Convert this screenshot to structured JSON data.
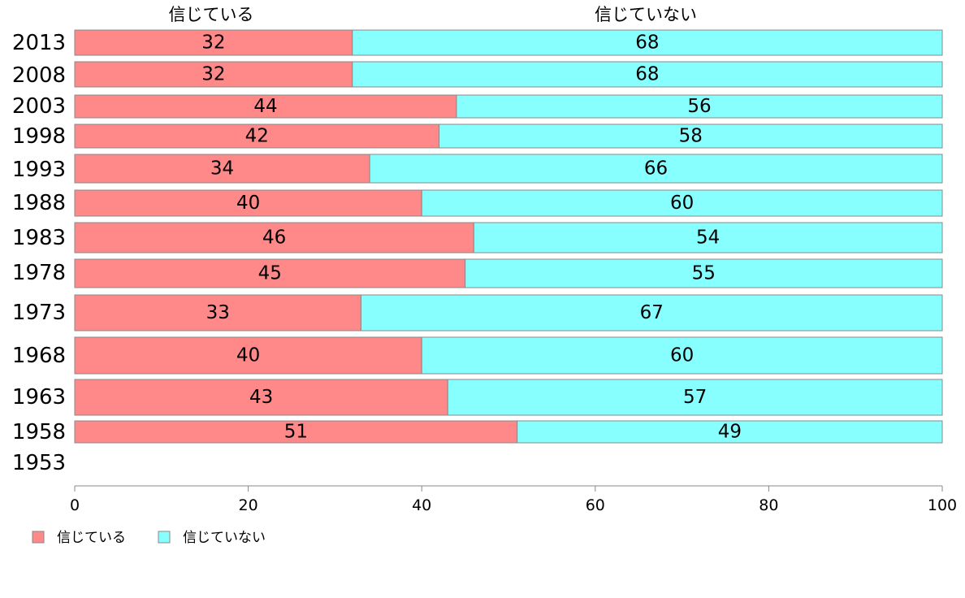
{
  "chart_data": {
    "type": "bar",
    "orientation": "horizontal",
    "stacked": true,
    "categories": [
      "2013",
      "2008",
      "2003",
      "1998",
      "1993",
      "1988",
      "1983",
      "1978",
      "1973",
      "1968",
      "1963",
      "1958",
      "1953"
    ],
    "series": [
      {
        "name": "信じている",
        "color": "#ff8888",
        "values": [
          32,
          32,
          44,
          42,
          34,
          40,
          46,
          45,
          33,
          40,
          43,
          51,
          null
        ]
      },
      {
        "name": "信じていない",
        "color": "#88ffff",
        "values": [
          68,
          68,
          56,
          58,
          66,
          60,
          54,
          55,
          67,
          60,
          57,
          49,
          null
        ]
      }
    ],
    "column_headers": [
      "信じている",
      "信じていない"
    ],
    "xlim": [
      0,
      100
    ],
    "xticks": [
      0,
      20,
      40,
      60,
      80,
      100
    ],
    "grid": false,
    "legend_position": "bottom-left"
  }
}
